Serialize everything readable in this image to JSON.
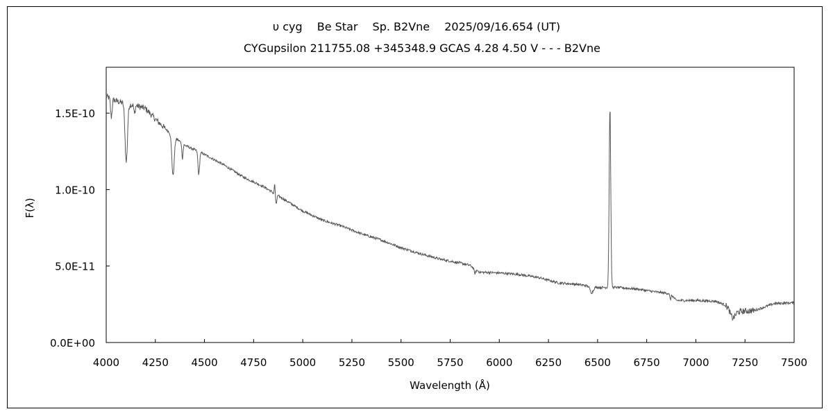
{
  "chart_data": {
    "type": "line",
    "title": "υ cyg　 Be Star　 Sp. B2Vne　 2025/09/16.654 (UT)",
    "subtitle": "CYGupsilon 211755.08 +345348.9 GCAS 4.28 4.50 V - - - B2Vne",
    "xlabel": "Wavelength (Å)",
    "ylabel": "F(λ)",
    "xlim": [
      4000,
      7500
    ],
    "ylim": [
      0,
      1.8e-10
    ],
    "xticks": [
      4000,
      4250,
      4500,
      4750,
      5000,
      5250,
      5500,
      5750,
      6000,
      6250,
      6500,
      6750,
      7000,
      7250,
      7500
    ],
    "xtick_labels": [
      "4000",
      "4250",
      "4500",
      "4750",
      "5000",
      "5250",
      "5500",
      "5750",
      "6000",
      "6250",
      "6500",
      "6750",
      "7000",
      "7250",
      "7500"
    ],
    "yticks": [
      0,
      5e-11,
      1e-10,
      1.5e-10
    ],
    "ytick_labels": [
      "0.0E+00",
      "5.0E-11",
      "1.0E-10",
      "1.5E-10"
    ],
    "grid": false,
    "legend": "none",
    "line_color": "#555555",
    "continuum_points": [
      [
        4000,
        1.61e-10
      ],
      [
        4050,
        1.58e-10
      ],
      [
        4100,
        1.56e-10
      ],
      [
        4150,
        1.55e-10
      ],
      [
        4200,
        1.53e-10
      ],
      [
        4250,
        1.46e-10
      ],
      [
        4300,
        1.4e-10
      ],
      [
        4350,
        1.34e-10
      ],
      [
        4400,
        1.29e-10
      ],
      [
        4500,
        1.23e-10
      ],
      [
        4600,
        1.16e-10
      ],
      [
        4700,
        1.08e-10
      ],
      [
        4800,
        1.02e-10
      ],
      [
        4900,
        9.4e-11
      ],
      [
        5000,
        8.6e-11
      ],
      [
        5100,
        8e-11
      ],
      [
        5200,
        7.6e-11
      ],
      [
        5300,
        7.1e-11
      ],
      [
        5400,
        6.7e-11
      ],
      [
        5500,
        6.2e-11
      ],
      [
        5600,
        5.8e-11
      ],
      [
        5700,
        5.45e-11
      ],
      [
        5800,
        5.2e-11
      ],
      [
        5850,
        5.05e-11
      ],
      [
        5900,
        4.6e-11
      ],
      [
        6000,
        4.55e-11
      ],
      [
        6100,
        4.45e-11
      ],
      [
        6200,
        4.25e-11
      ],
      [
        6300,
        3.9e-11
      ],
      [
        6400,
        3.8e-11
      ],
      [
        6500,
        3.6e-11
      ],
      [
        6600,
        3.6e-11
      ],
      [
        6700,
        3.5e-11
      ],
      [
        6800,
        3.3e-11
      ],
      [
        6870,
        3.2e-11
      ],
      [
        6900,
        2.75e-11
      ],
      [
        7000,
        2.75e-11
      ],
      [
        7100,
        2.7e-11
      ],
      [
        7150,
        2.45e-11
      ],
      [
        7200,
        2e-11
      ],
      [
        7300,
        2.1e-11
      ],
      [
        7400,
        2.55e-11
      ],
      [
        7500,
        2.6e-11
      ]
    ],
    "features": [
      {
        "center": 4026,
        "width": 4,
        "depth": 1.2e-11
      },
      {
        "center": 4102,
        "width": 6,
        "depth": 3.8e-11
      },
      {
        "center": 4144,
        "width": 3,
        "depth": 6e-12
      },
      {
        "center": 4340,
        "width": 6,
        "depth": 2.6e-11
      },
      {
        "center": 4388,
        "width": 3,
        "depth": 1e-11
      },
      {
        "center": 4471,
        "width": 4,
        "depth": 1.5e-11
      },
      {
        "center": 4861,
        "width": 5,
        "depth": 1e-11
      },
      {
        "center": 4858,
        "width": 3,
        "depth": -1.4e-11
      },
      {
        "center": 5876,
        "width": 4,
        "depth": 3e-12
      },
      {
        "center": 6470,
        "width": 8,
        "depth": 4e-12
      },
      {
        "center": 6563,
        "width": 4,
        "depth": -1.18e-10
      },
      {
        "center": 6870,
        "width": 3,
        "depth": 4e-12
      },
      {
        "center": 7186,
        "width": 12,
        "depth": 5e-12
      }
    ]
  }
}
